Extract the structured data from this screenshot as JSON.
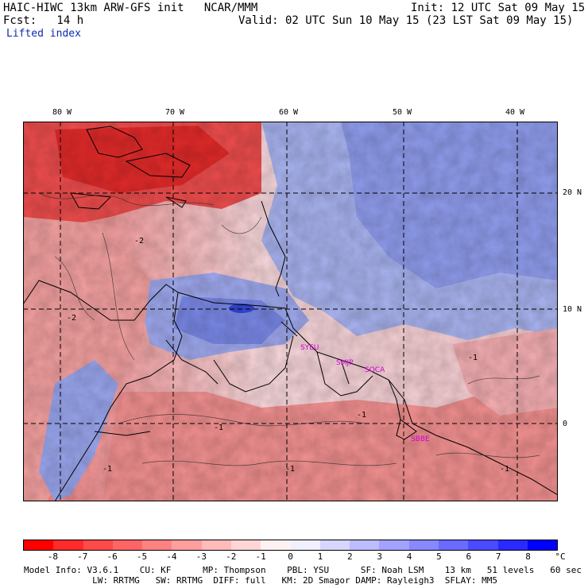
{
  "header": {
    "model_line": "HAIC-HIWC 13km ARW-GFS init   NCAR/MMM",
    "init_line": "Init: 12 UTC Sat 09 May 15",
    "fcst_line": "Fcst:   14 h",
    "valid_line": "Valid: 02 UTC Sun 10 May 15 (23 LST Sat 09 May 15)",
    "field_name": "Lifted index"
  },
  "map": {
    "lon_labels": [
      "80 W",
      "70 W",
      "60 W",
      "50 W",
      "40 W"
    ],
    "lat_labels": [
      "20 N",
      "10 N",
      "0"
    ],
    "contour_labels": [
      "-2",
      "-2",
      "-1",
      "-1",
      "-1",
      "-1",
      "-1",
      "-1"
    ],
    "stations": [
      "SYEU",
      "SMJP",
      "SOCA",
      "SBBE"
    ],
    "station_color": "#d400d4",
    "grid_style": "dashed",
    "dominant_west_color": "#ee4444",
    "dominant_east_color": "#6677ee"
  },
  "colorbar": {
    "labels": [
      "-8",
      "-7",
      "-6",
      "-5",
      "-4",
      "-3",
      "-2",
      "-1",
      "0",
      "1",
      "2",
      "3",
      "4",
      "5",
      "6",
      "7",
      "8"
    ],
    "unit": "°C",
    "colors": [
      "#ff0000",
      "#ff2a2a",
      "#ff4a4a",
      "#ff6565",
      "#ff8282",
      "#ff9e9e",
      "#ffbaba",
      "#ffd6d6",
      "#fff2f2",
      "#f0f0ff",
      "#d6d6ff",
      "#bcbcff",
      "#a2a2ff",
      "#8888ff",
      "#6a6aff",
      "#4a4aff",
      "#2a2aff",
      "#0000ff"
    ]
  },
  "footer": {
    "line1": "Model Info: V3.6.1    CU: KF      MP: Thompson    PBL: YSU      SF: Noah LSM    13 km   51 levels   60 sec",
    "line2": "             LW: RRTMG   SW: RRTMG  DIFF: full   KM: 2D Smagor DAMP: Rayleigh3  SFLAY: MM5"
  }
}
